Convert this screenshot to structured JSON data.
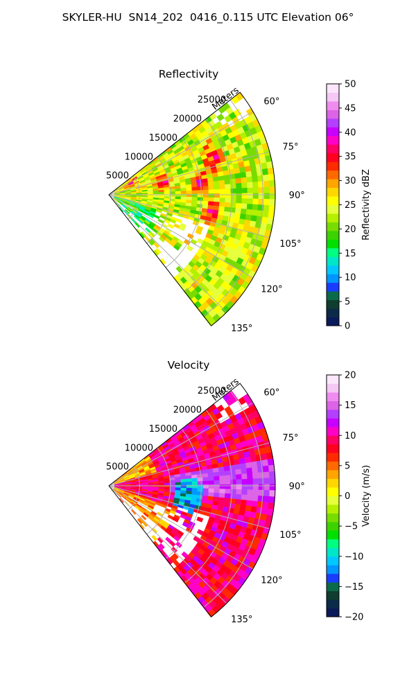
{
  "title": "SKYLER-HU  SN14_202  0416_0.115 UTC Elevation 06°",
  "chart_data": [
    {
      "type": "heatmap",
      "subtype": "polar-sector",
      "title": "Reflectivity",
      "range_axis_label": "Meters",
      "range_ticks": [
        "5000",
        "10000",
        "15000",
        "20000",
        "25000"
      ],
      "range_tick_values": [
        5000,
        10000,
        15000,
        20000,
        25000
      ],
      "range_max": 27000,
      "azimuth_ticks": [
        "60°",
        "75°",
        "90°",
        "105°",
        "120°",
        "135°"
      ],
      "azimuth_tick_values": [
        60,
        75,
        90,
        105,
        120,
        135
      ],
      "azimuth_range": [
        52,
        142
      ],
      "grid": true,
      "colorbar": {
        "label": "Reflectivity dBZ",
        "range": [
          0,
          50
        ],
        "ticks": [
          "0",
          "5",
          "10",
          "15",
          "20",
          "25",
          "30",
          "35",
          "40",
          "45",
          "50"
        ],
        "tick_values": [
          0,
          5,
          10,
          15,
          20,
          25,
          30,
          35,
          40,
          45,
          50
        ],
        "colors": [
          "#0a1a5a",
          "#0c2a4a",
          "#0f3d2f",
          "#0a6a4a",
          "#1a3cff",
          "#0096ff",
          "#00c8ff",
          "#00e6c8",
          "#00ff80",
          "#00e000",
          "#3cd200",
          "#78dc00",
          "#b4f000",
          "#e6ff3c",
          "#ffff00",
          "#ffd700",
          "#ffa500",
          "#ff6a00",
          "#ff2a00",
          "#ff0020",
          "#ff0064",
          "#ff00c8",
          "#c800ff",
          "#b440ff",
          "#dc64e6",
          "#f08cf0",
          "#f5c8f5",
          "#fbe6fb"
        ]
      },
      "field": "reflectivity",
      "dominant_value_range": [
        18,
        30
      ]
    },
    {
      "type": "heatmap",
      "subtype": "polar-sector",
      "title": "Velocity",
      "range_axis_label": "Meters",
      "range_ticks": [
        "5000",
        "10000",
        "15000",
        "20000",
        "25000"
      ],
      "range_tick_values": [
        5000,
        10000,
        15000,
        20000,
        25000
      ],
      "range_max": 27000,
      "azimuth_ticks": [
        "60°",
        "75°",
        "90°",
        "105°",
        "120°",
        "135°"
      ],
      "azimuth_tick_values": [
        60,
        75,
        90,
        105,
        120,
        135
      ],
      "azimuth_range": [
        52,
        142
      ],
      "grid": true,
      "colorbar": {
        "label": "Velocity (m/s)",
        "range": [
          -20,
          20
        ],
        "ticks": [
          "−20",
          "−15",
          "−10",
          "−5",
          "0",
          "5",
          "10",
          "15",
          "20"
        ],
        "tick_values": [
          -20,
          -15,
          -10,
          -5,
          0,
          5,
          10,
          15,
          20
        ],
        "colors": [
          "#0a1a5a",
          "#0c2a4a",
          "#0f3d2f",
          "#0a6a4a",
          "#1a3cff",
          "#0096ff",
          "#00c8ff",
          "#00e6c8",
          "#00ff80",
          "#00e000",
          "#3cd200",
          "#78dc00",
          "#b4f000",
          "#e6ff3c",
          "#ffff00",
          "#ffd700",
          "#ffa500",
          "#ff6a00",
          "#ff2a00",
          "#ff0020",
          "#ff0064",
          "#ff00c8",
          "#c800ff",
          "#b440ff",
          "#dc64e6",
          "#f08cf0",
          "#f5c8f5",
          "#fbe6fb"
        ]
      },
      "field": "velocity",
      "dominant_value_range": [
        5,
        15
      ]
    }
  ]
}
